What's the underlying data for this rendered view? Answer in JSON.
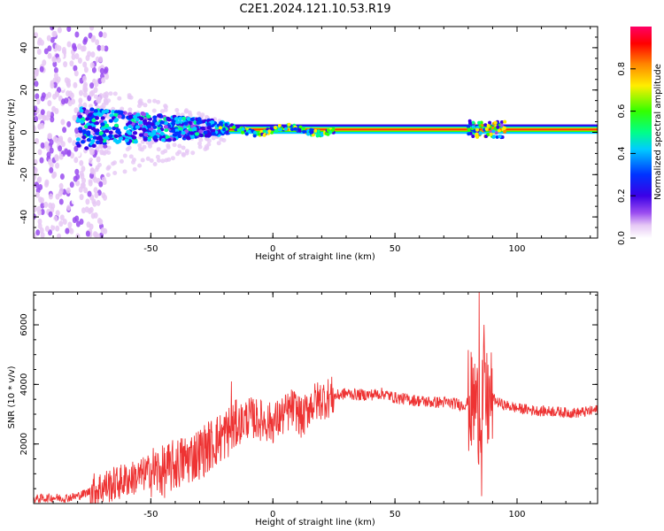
{
  "page_title": "C2E1.2024.121.10.53.R19",
  "chart_data": [
    {
      "type": "heatmap",
      "title": "C2E1.2024.121.10.53.R19",
      "xlabel": "Height of straight line (km)",
      "ylabel": "Frequency (Hz)",
      "xlim": [
        -98,
        133
      ],
      "ylim": [
        -50,
        50
      ],
      "xticks": [
        -50,
        0,
        50,
        100
      ],
      "yticks": [
        -40,
        -20,
        0,
        20,
        40
      ],
      "xticks_labels": [
        "-50",
        "0",
        "50",
        "100"
      ],
      "yticks_labels": [
        "-40",
        "-20",
        "0",
        "20",
        "40"
      ],
      "colorbar": {
        "label": "Normalized spectral amplitude",
        "range": [
          0,
          1
        ],
        "ticks": [
          0.0,
          0.2,
          0.4,
          0.6,
          0.8
        ],
        "ticks_labels": [
          "0.0",
          "0.2",
          "0.4",
          "0.6",
          "0.8"
        ],
        "colormap": [
          "#ffffff",
          "#e6c8f5",
          "#9a4cf0",
          "#3a00e6",
          "#0033ff",
          "#00ccff",
          "#00ff88",
          "#33ff00",
          "#ffee00",
          "#ff8800",
          "#ff0000",
          "#ff0066"
        ]
      },
      "features": [
        {
          "description_x_range": [
            -98,
            -70
          ],
          "frequency_spread_hz": [
            -50,
            50
          ],
          "amplitude": "low"
        },
        {
          "description_x_range": [
            -80,
            -20
          ],
          "frequency_spread_hz": [
            -12,
            12
          ],
          "amplitude": "medium"
        },
        {
          "description_x_range": [
            -20,
            133
          ],
          "frequency_hz": 1.5,
          "amplitude": "high"
        },
        {
          "description_x_range": [
            80,
            95
          ],
          "frequency_spread_hz": [
            -3,
            6
          ],
          "amplitude": "medium"
        }
      ],
      "grid": false
    },
    {
      "type": "line",
      "xlabel": "Height of straight line (km)",
      "ylabel": "SNR (10 * v/v)",
      "xlim": [
        -98,
        133
      ],
      "ylim": [
        0,
        7100
      ],
      "xticks": [
        -50,
        0,
        50,
        100
      ],
      "yticks": [
        2000,
        4000,
        6000
      ],
      "xticks_labels": [
        "-50",
        "0",
        "50",
        "100"
      ],
      "yticks_labels": [
        "2000",
        "4000",
        "6000"
      ],
      "color": "#ee3333",
      "series": [
        {
          "x": [
            -98,
            -90,
            -85,
            -80,
            -75,
            -70,
            -65,
            -60,
            -55,
            -50,
            -45,
            -40,
            -35,
            -30,
            -25,
            -20,
            -17,
            -15,
            -10,
            -5,
            0,
            5,
            8,
            10,
            12,
            15,
            20,
            25,
            30,
            35,
            40,
            45,
            50,
            55,
            60,
            65,
            70,
            75,
            78,
            80,
            82,
            83,
            84,
            85,
            86,
            87,
            88,
            90,
            92,
            95,
            100,
            105,
            110,
            115,
            120,
            125,
            130,
            133
          ],
          "y": [
            150,
            200,
            180,
            250,
            400,
            550,
            650,
            800,
            900,
            1100,
            1050,
            1300,
            1500,
            1700,
            2000,
            2300,
            2500,
            2600,
            2900,
            2800,
            2700,
            3000,
            3200,
            3100,
            2800,
            3300,
            3500,
            3600,
            3700,
            3650,
            3650,
            3700,
            3550,
            3500,
            3450,
            3400,
            3400,
            3350,
            3300,
            3400,
            3300,
            3500,
            3000,
            3300,
            3600,
            3400,
            3350,
            3550,
            3400,
            3300,
            3200,
            3150,
            3100,
            3100,
            3050,
            3050,
            3100,
            3150
          ],
          "noise_envelope": [
            {
              "x_range": [
                -98,
                -75
              ],
              "amp": 150
            },
            {
              "x_range": [
                -75,
                -50
              ],
              "amp": 600
            },
            {
              "x_range": [
                -50,
                -15
              ],
              "amp": 900
            },
            {
              "x_range": [
                -15,
                25
              ],
              "amp": 700
            },
            {
              "x_range": [
                25,
                80
              ],
              "amp": 200
            },
            {
              "x_range": [
                80,
                90
              ],
              "amp": 1800
            },
            {
              "x_range": [
                90,
                133
              ],
              "amp": 180
            }
          ],
          "spikes": [
            {
              "x": -17,
              "y": 4100
            },
            {
              "x": 84.5,
              "y": 7100
            },
            {
              "x": 85.5,
              "y": 250
            },
            {
              "x": 86.5,
              "y": 6000
            }
          ]
        }
      ],
      "grid": false
    }
  ]
}
